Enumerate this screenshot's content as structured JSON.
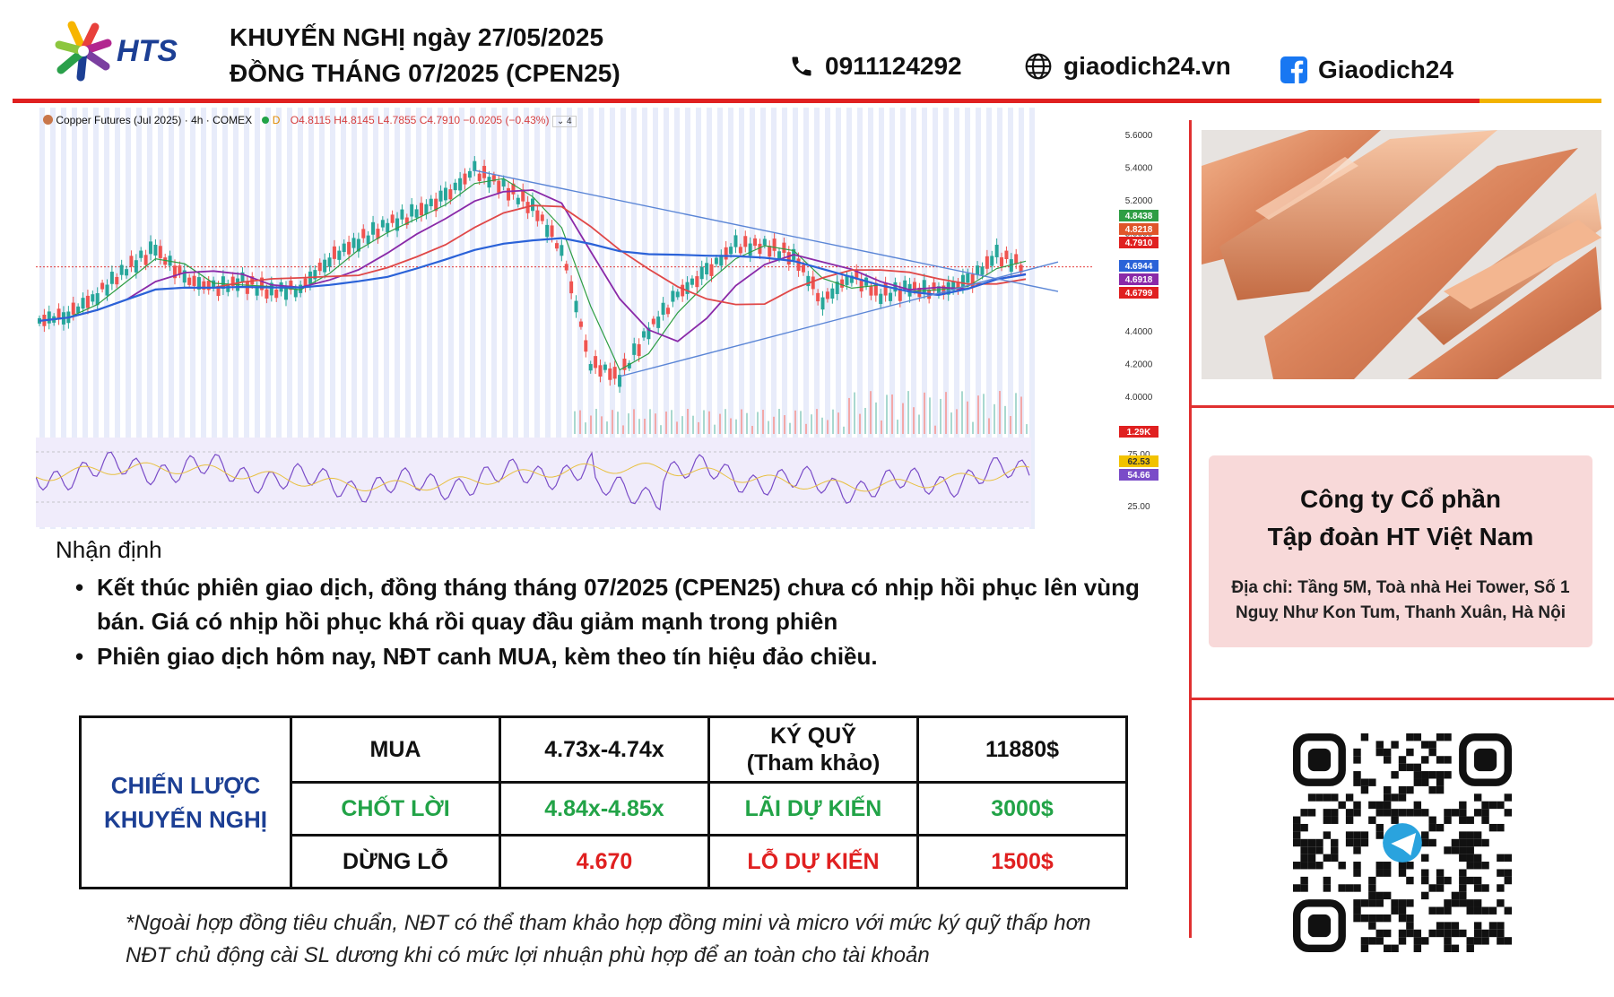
{
  "header": {
    "logo_text": "HTS",
    "title_line1": "KHUYẾN NGHỊ ngày 27/05/2025",
    "title_line2": "ĐỒNG THÁNG 07/2025 (CPEN25)",
    "phone": "0911124292",
    "website": "giaodich24.vn",
    "facebook": "Giaodich24",
    "icons": [
      "phone-icon",
      "globe-icon",
      "facebook-icon"
    ]
  },
  "chart_header": {
    "symbol": "Copper Futures (Jul 2025) · 4h · COMEX",
    "badge": "D",
    "ohlc": "O4.8115 H4.8145 L4.7855 C4.7910 −0.0205 (−0.43%)",
    "collapse_label": "4"
  },
  "chart_data": {
    "type": "line",
    "title": "Copper Futures (Jul 2025) · 4h · COMEX",
    "price_ticks": [
      "5.6000",
      "5.4000",
      "5.2000",
      "5.0000",
      "4.4000",
      "4.2000",
      "4.0000"
    ],
    "ylim": [
      3.9,
      5.6
    ],
    "price_labels": [
      {
        "text": "4.8438",
        "value": 4.8438,
        "color": "#2e9e44"
      },
      {
        "text": "4.8218",
        "value": 4.8218,
        "color": "#e0552a"
      },
      {
        "text": "4.7910",
        "value": 4.791,
        "color": "#e02020"
      },
      {
        "text": "4.6944",
        "value": 4.6944,
        "color": "#2a62d8"
      },
      {
        "text": "4.6918",
        "value": 4.6918,
        "color": "#8a2aa8"
      },
      {
        "text": "4.6799",
        "value": 4.6799,
        "color": "#e02020"
      }
    ],
    "volume_label": "1.29K",
    "rsi_ticks": [
      "75.00",
      "25.00"
    ],
    "rsi_labels": [
      {
        "text": "62.53",
        "color": "#f2c200"
      },
      {
        "text": "54.66",
        "color": "#7a4cc8"
      }
    ],
    "series": [
      {
        "values": [
          4.46,
          4.5,
          4.62,
          4.78,
          4.9,
          4.72,
          4.66,
          4.7,
          4.64,
          4.66,
          4.84,
          4.95,
          5.05,
          5.12,
          5.22,
          5.38,
          5.28,
          5.16,
          4.9,
          4.2,
          4.12,
          4.4,
          4.62,
          4.76,
          4.92,
          4.92,
          4.86,
          4.58,
          4.74,
          4.62,
          4.66,
          4.64,
          4.7,
          4.86,
          4.79
        ]
      }
    ]
  },
  "right": {
    "company_line1": "Công ty Cổ phần",
    "company_line2": "Tập đoàn HT Việt Nam",
    "address": "Địa chỉ: Tầng 5M, Toà nhà Hei Tower, Số 1 Nguỵ Như Kon Tum, Thanh Xuân, Hà Nội"
  },
  "analysis": {
    "heading": "Nhận định",
    "bullets": [
      "Kết thúc phiên giao dịch, đồng tháng tháng 07/2025 (CPEN25) chưa có nhịp hồi phục lên vùng bán. Giá có nhịp hồi phục khá rồi quay đầu giảm mạnh trong phiên",
      "Phiên giao dịch hôm nay, NĐT canh MUA, kèm theo tín hiệu đảo chiều."
    ]
  },
  "strategy": {
    "label_line1": "CHIẾN LƯỢC",
    "label_line2": "KHUYẾN NGHỊ",
    "buy_label": "MUA",
    "buy_range": "4.73x-4.74x",
    "margin_label_line1": "KÝ QUỸ",
    "margin_label_line2": "(Tham khảo)",
    "margin_value": "11880$",
    "tp_label": "CHỐT LỜI",
    "tp_range": "4.84x-4.85x",
    "profit_label": "LÃI DỰ KIẾN",
    "profit_value": "3000$",
    "sl_label": "DỪNG LỖ",
    "sl_value": "4.670",
    "loss_label": "LỖ DỰ KIẾN",
    "loss_value": "1500$"
  },
  "notes": {
    "line1": "*Ngoài hợp đồng tiêu chuẩn, NĐT có thể tham khảo hợp đồng mini và micro với mức ký quỹ thấp hơn",
    "line2": "NĐT chủ động cài SL dương khi có mức lợi nhuận phù hợp để an toàn cho tài khoản"
  },
  "colors": {
    "brand_blue": "#1c3f94",
    "accent_red": "#e02020",
    "profit_green": "#22a347",
    "ema_blue": "#2a62d8",
    "ema_red": "#e04848",
    "ema_purple": "#8a2aa8"
  }
}
